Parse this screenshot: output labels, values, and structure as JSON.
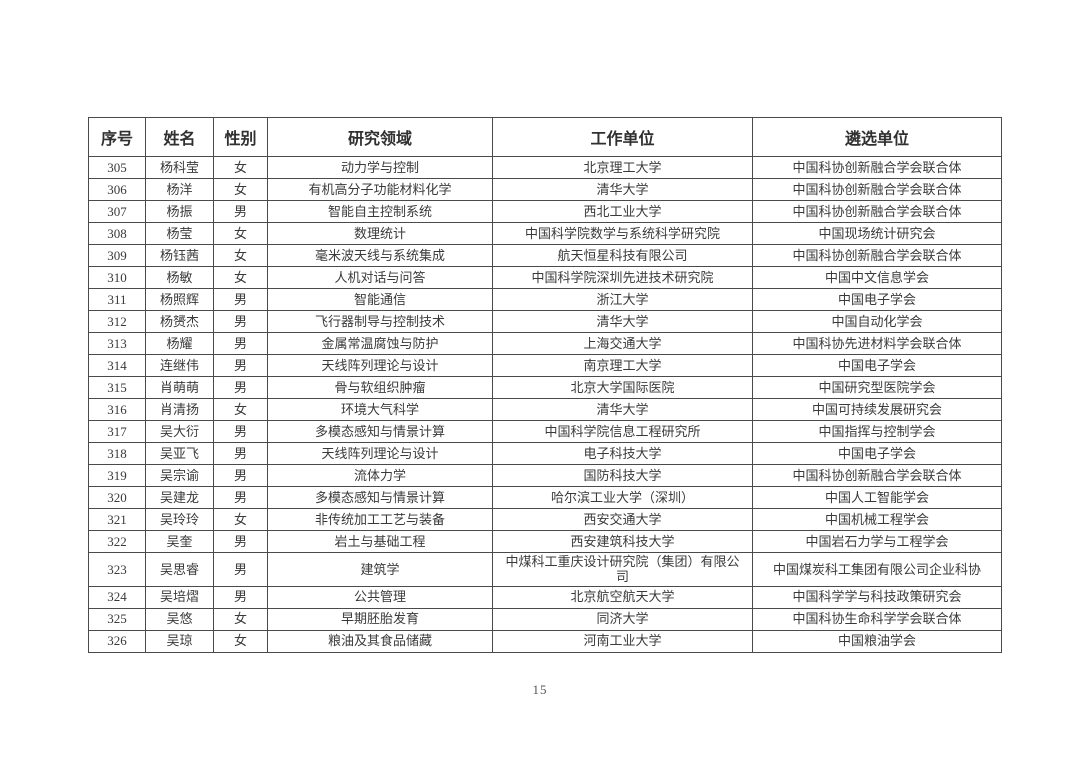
{
  "document": {
    "page_number": "15"
  },
  "table": {
    "columns": [
      "序号",
      "姓名",
      "性别",
      "研究领域",
      "工作单位",
      "遴选单位"
    ],
    "rows": [
      {
        "no": "305",
        "name": "杨科莹",
        "gender": "女",
        "field": "动力学与控制",
        "work_unit": "北京理工大学",
        "selection_unit": "中国科协创新融合学会联合体"
      },
      {
        "no": "306",
        "name": "杨洋",
        "gender": "女",
        "field": "有机高分子功能材料化学",
        "work_unit": "清华大学",
        "selection_unit": "中国科协创新融合学会联合体"
      },
      {
        "no": "307",
        "name": "杨振",
        "gender": "男",
        "field": "智能自主控制系统",
        "work_unit": "西北工业大学",
        "selection_unit": "中国科协创新融合学会联合体"
      },
      {
        "no": "308",
        "name": "杨莹",
        "gender": "女",
        "field": "数理统计",
        "work_unit": "中国科学院数学与系统科学研究院",
        "selection_unit": "中国现场统计研究会"
      },
      {
        "no": "309",
        "name": "杨钰茜",
        "gender": "女",
        "field": "毫米波天线与系统集成",
        "work_unit": "航天恒星科技有限公司",
        "selection_unit": "中国科协创新融合学会联合体"
      },
      {
        "no": "310",
        "name": "杨敏",
        "gender": "女",
        "field": "人机对话与问答",
        "work_unit": "中国科学院深圳先进技术研究院",
        "selection_unit": "中国中文信息学会"
      },
      {
        "no": "311",
        "name": "杨照辉",
        "gender": "男",
        "field": "智能通信",
        "work_unit": "浙江大学",
        "selection_unit": "中国电子学会"
      },
      {
        "no": "312",
        "name": "杨赟杰",
        "gender": "男",
        "field": "飞行器制导与控制技术",
        "work_unit": "清华大学",
        "selection_unit": "中国自动化学会"
      },
      {
        "no": "313",
        "name": "杨耀",
        "gender": "男",
        "field": "金属常温腐蚀与防护",
        "work_unit": "上海交通大学",
        "selection_unit": "中国科协先进材料学会联合体"
      },
      {
        "no": "314",
        "name": "连继伟",
        "gender": "男",
        "field": "天线阵列理论与设计",
        "work_unit": "南京理工大学",
        "selection_unit": "中国电子学会"
      },
      {
        "no": "315",
        "name": "肖萌萌",
        "gender": "男",
        "field": "骨与软组织肿瘤",
        "work_unit": "北京大学国际医院",
        "selection_unit": "中国研究型医院学会"
      },
      {
        "no": "316",
        "name": "肖清扬",
        "gender": "女",
        "field": "环境大气科学",
        "work_unit": "清华大学",
        "selection_unit": "中国可持续发展研究会"
      },
      {
        "no": "317",
        "name": "吴大衍",
        "gender": "男",
        "field": "多模态感知与情景计算",
        "work_unit": "中国科学院信息工程研究所",
        "selection_unit": "中国指挥与控制学会"
      },
      {
        "no": "318",
        "name": "吴亚飞",
        "gender": "男",
        "field": "天线阵列理论与设计",
        "work_unit": "电子科技大学",
        "selection_unit": "中国电子学会"
      },
      {
        "no": "319",
        "name": "吴宗谕",
        "gender": "男",
        "field": "流体力学",
        "work_unit": "国防科技大学",
        "selection_unit": "中国科协创新融合学会联合体"
      },
      {
        "no": "320",
        "name": "吴建龙",
        "gender": "男",
        "field": "多模态感知与情景计算",
        "work_unit": "哈尔滨工业大学（深圳）",
        "selection_unit": "中国人工智能学会"
      },
      {
        "no": "321",
        "name": "吴玲玲",
        "gender": "女",
        "field": "非传统加工工艺与装备",
        "work_unit": "西安交通大学",
        "selection_unit": "中国机械工程学会"
      },
      {
        "no": "322",
        "name": "吴奎",
        "gender": "男",
        "field": "岩土与基础工程",
        "work_unit": "西安建筑科技大学",
        "selection_unit": "中国岩石力学与工程学会"
      },
      {
        "no": "323",
        "name": "吴思睿",
        "gender": "男",
        "field": "建筑学",
        "work_unit": "中煤科工重庆设计研究院（集团）有限公司",
        "selection_unit": "中国煤炭科工集团有限公司企业科协"
      },
      {
        "no": "324",
        "name": "吴培熠",
        "gender": "男",
        "field": "公共管理",
        "work_unit": "北京航空航天大学",
        "selection_unit": "中国科学学与科技政策研究会"
      },
      {
        "no": "325",
        "name": "吴悠",
        "gender": "女",
        "field": "早期胚胎发育",
        "work_unit": "同济大学",
        "selection_unit": "中国科协生命科学学会联合体"
      },
      {
        "no": "326",
        "name": "吴琼",
        "gender": "女",
        "field": "粮油及其食品储藏",
        "work_unit": "河南工业大学",
        "selection_unit": "中国粮油学会"
      }
    ]
  }
}
